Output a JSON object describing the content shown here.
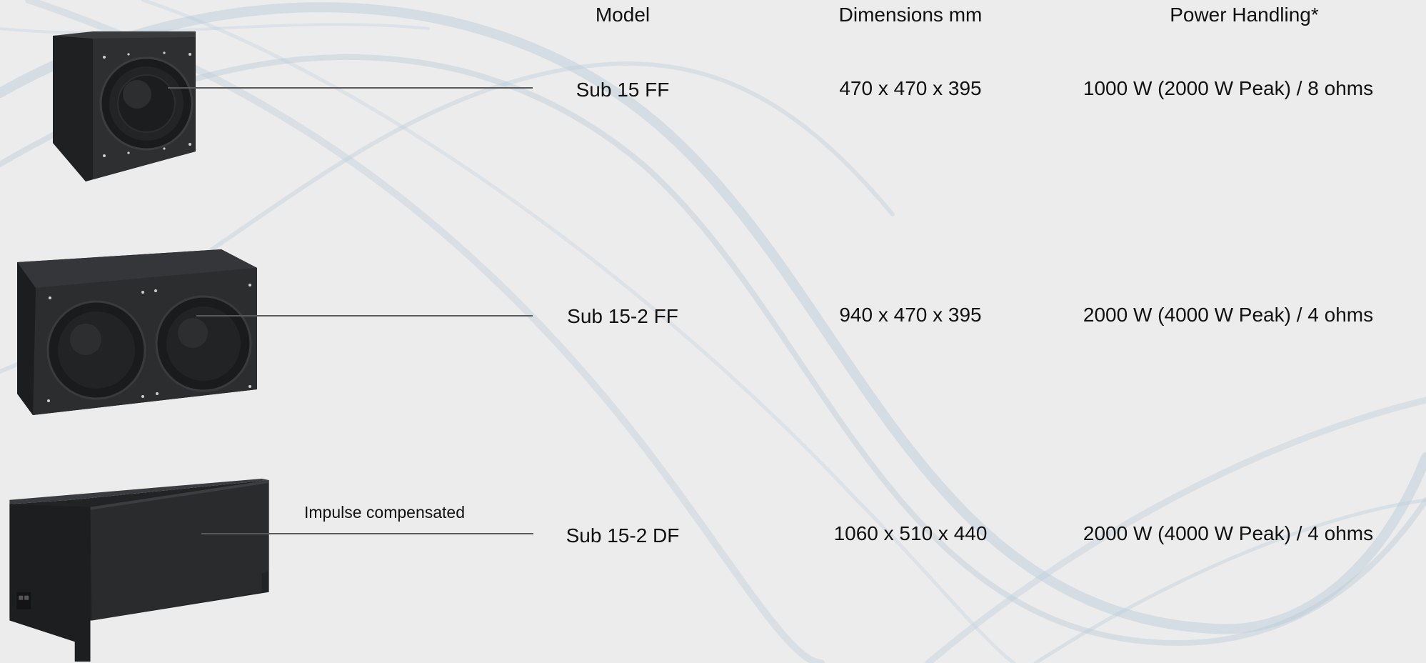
{
  "headers": {
    "model": "Model",
    "dimensions": "Dimensions mm",
    "power": "Power Handling*"
  },
  "rows": [
    {
      "model": "Sub 15 FF",
      "dimensions": "470 x 470 x 395",
      "power": "1000 W (2000 W Peak) / 8 ohms",
      "note": ""
    },
    {
      "model": "Sub 15-2 FF",
      "dimensions": "940 x 470 x 395",
      "power": "2000 W (4000 W Peak) / 4 ohms",
      "note": ""
    },
    {
      "model": "Sub 15-2 DF",
      "dimensions": "1060 x 510 x 440",
      "power": "2000 W (4000 W Peak) / 4 ohms",
      "note": "Impulse compensated"
    }
  ],
  "colors": {
    "background": "#ececec",
    "swoosh": "#b7cbd9",
    "cabinet": "#2a2b2d",
    "leader_line": "#5a5a5a"
  }
}
